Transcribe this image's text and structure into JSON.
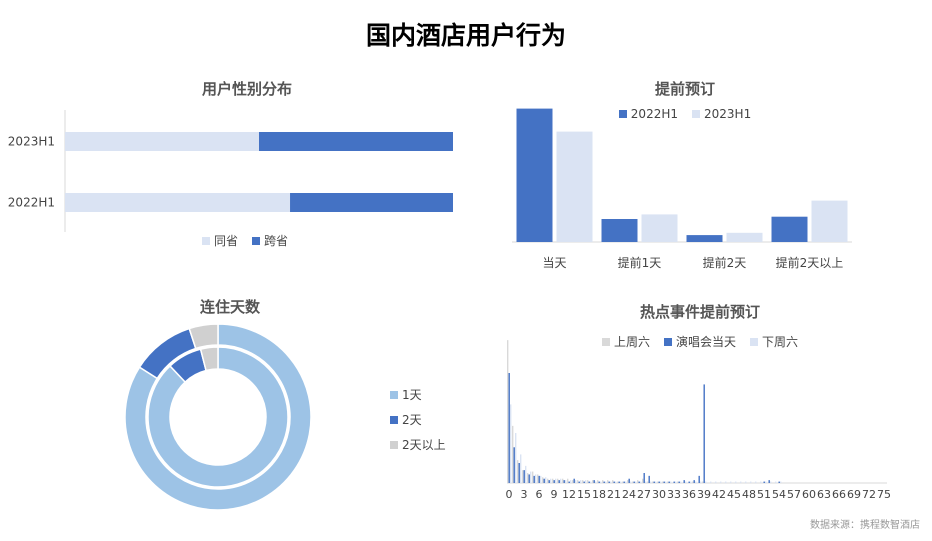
{
  "page_title": "国内酒店用户行为",
  "source": "数据来源：携程数智酒店",
  "colors": {
    "dark": "#4472C4",
    "light": "#DAE3F3",
    "mid": "#9DC3E6",
    "gray": "#D0D0D0"
  },
  "chart_data": [
    {
      "id": "gender",
      "type": "bar",
      "orientation": "horizontal",
      "stacked": true,
      "title": "用户性别分布",
      "categories": [
        "2023H1",
        "2022H1"
      ],
      "series": [
        {
          "name": "同省",
          "values": [
            0.5,
            0.58
          ]
        },
        {
          "name": "跨省",
          "values": [
            0.5,
            0.42
          ]
        }
      ],
      "xlim": [
        0,
        1
      ],
      "legend": "bottom"
    },
    {
      "id": "advance",
      "type": "bar",
      "title": "提前预订",
      "categories": [
        "当天",
        "提前1天",
        "提前2天",
        "提前2天以上"
      ],
      "series": [
        {
          "name": "2022H1",
          "values": [
            58,
            10,
            3,
            11
          ]
        },
        {
          "name": "2023H1",
          "values": [
            48,
            12,
            4,
            18
          ]
        }
      ],
      "ylim": [
        0,
        60
      ],
      "legend": "top"
    },
    {
      "id": "stay",
      "type": "pie",
      "donut": true,
      "title": "连住天数",
      "labels": [
        "1天",
        "2天",
        "2天以上"
      ],
      "rings": [
        {
          "values": [
            84,
            11,
            5
          ]
        },
        {
          "values": [
            88,
            8,
            4
          ]
        }
      ],
      "legend": "right"
    },
    {
      "id": "hotspot",
      "type": "bar",
      "title": "热点事件提前预订",
      "x": [
        0,
        1,
        2,
        3,
        4,
        5,
        6,
        7,
        8,
        9,
        10,
        11,
        12,
        13,
        14,
        15,
        16,
        17,
        18,
        19,
        20,
        21,
        22,
        23,
        24,
        25,
        26,
        27,
        28,
        29,
        30,
        31,
        32,
        33,
        34,
        35,
        36,
        37,
        38,
        39,
        40,
        41,
        42,
        43,
        44,
        45,
        46,
        47,
        48,
        49,
        50,
        51,
        52,
        53,
        54,
        55,
        56,
        57,
        58,
        59,
        60,
        61,
        62,
        63,
        64,
        65,
        66,
        67,
        68,
        69,
        70,
        71,
        72,
        73,
        74,
        75
      ],
      "xticks": [
        0,
        3,
        6,
        9,
        12,
        15,
        18,
        21,
        24,
        27,
        30,
        33,
        36,
        39,
        42,
        45,
        48,
        51,
        54,
        57,
        60,
        63,
        66,
        69,
        72,
        75
      ],
      "xticklabels": [
        "0",
        "3",
        "6",
        "9",
        "12",
        "15",
        "18",
        "21",
        "24",
        "27",
        "30",
        "33",
        "36",
        "39",
        "42",
        "45",
        "48",
        "51",
        "54",
        "57",
        "60",
        "63",
        "66",
        "69",
        "72",
        "75"
      ],
      "series": [
        {
          "name": "上周六",
          "values": [
            100,
            40,
            16,
            9,
            7,
            8,
            6,
            4,
            3,
            3,
            3,
            3,
            3,
            2,
            2,
            2,
            2,
            2,
            2,
            2,
            2,
            2,
            1,
            1,
            2,
            1,
            2,
            3,
            1,
            1,
            1,
            1,
            1,
            0,
            1,
            0,
            0,
            1,
            0,
            1,
            0,
            0,
            0,
            0,
            0,
            0,
            0,
            0,
            0,
            0,
            0,
            0,
            0,
            0,
            0,
            0,
            0,
            0,
            0,
            0,
            0,
            0,
            0,
            0,
            0,
            0,
            0,
            0,
            0,
            0,
            0,
            0,
            0,
            0,
            0,
            0
          ]
        },
        {
          "name": "演唱会当天",
          "values": [
            77,
            25,
            14,
            9,
            6,
            5,
            5,
            3,
            2,
            2,
            2,
            2,
            1,
            3,
            1,
            1,
            1,
            2,
            1,
            1,
            1,
            1,
            1,
            1,
            3,
            1,
            1,
            7,
            5,
            1,
            1,
            1,
            1,
            1,
            1,
            2,
            1,
            2,
            5,
            69,
            0,
            0,
            0,
            0,
            0,
            0,
            0,
            0,
            0,
            0,
            0,
            1,
            2,
            0,
            1,
            0,
            0,
            0,
            0,
            0,
            0,
            0,
            0,
            0,
            0,
            0,
            0,
            0,
            0,
            0,
            0,
            0,
            0,
            0,
            0,
            0
          ]
        },
        {
          "name": "下周六",
          "values": [
            55,
            35,
            20,
            12,
            8,
            6,
            5,
            4,
            3,
            3,
            3,
            2,
            2,
            2,
            2,
            2,
            1,
            1,
            1,
            1,
            1,
            1,
            1,
            1,
            1,
            1,
            1,
            1,
            1,
            1,
            1,
            1,
            1,
            1,
            1,
            1,
            1,
            1,
            1,
            1,
            1,
            1,
            1,
            1,
            1,
            1,
            1,
            1,
            1,
            1,
            1,
            1,
            1,
            1,
            1,
            0,
            0,
            0,
            0,
            0,
            0,
            0,
            0,
            0,
            0,
            0,
            0,
            0,
            0,
            0,
            0,
            0,
            0,
            0,
            0,
            0
          ]
        }
      ],
      "ylim": [
        0,
        105
      ],
      "legend": "top"
    }
  ]
}
